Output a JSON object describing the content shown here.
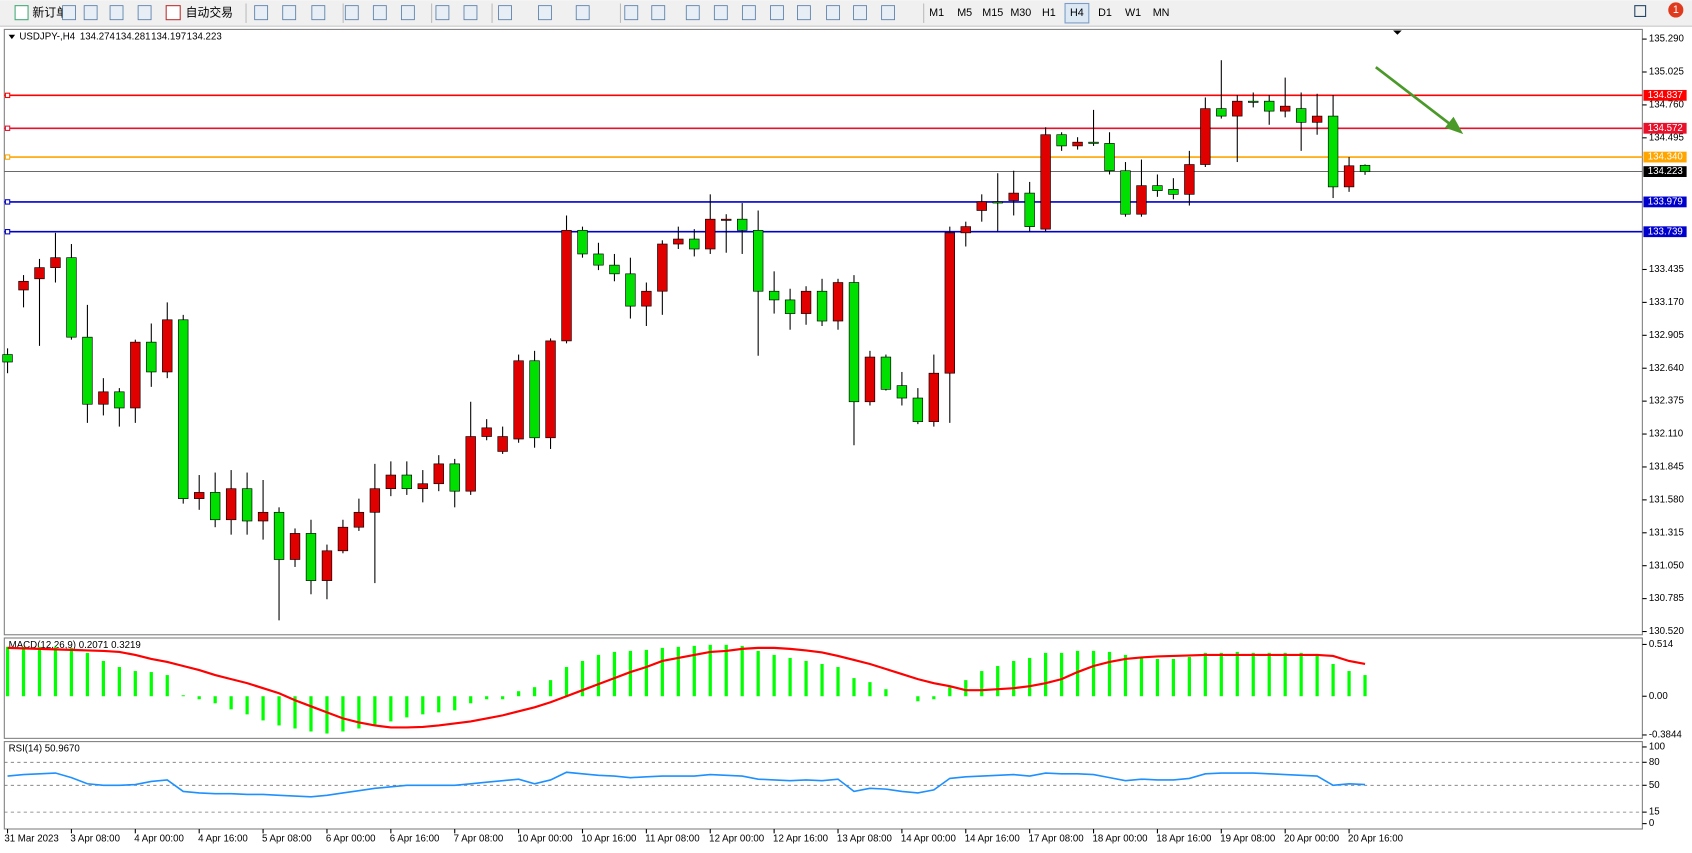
{
  "toolbar": {
    "new_order": "新订单",
    "auto_trading": "自动交易",
    "timeframes": [
      "M1",
      "M5",
      "M15",
      "M30",
      "H1",
      "H4",
      "D1",
      "W1",
      "MN"
    ],
    "active_timeframe": "H4",
    "notifications": 1
  },
  "chart_data": [
    {
      "type": "candlestick",
      "title": "USDJPY-,H4",
      "up_color": "#e00000",
      "down_color": "#00e000",
      "categories": [
        "31 Mar 2023",
        null,
        null,
        null,
        "3 Apr 08:00",
        null,
        null,
        null,
        "4 Apr 00:00",
        null,
        null,
        null,
        "4 Apr 16:00",
        null,
        null,
        null,
        "5 Apr 08:00",
        null,
        null,
        null,
        "6 Apr 00:00",
        null,
        null,
        null,
        "6 Apr 16:00",
        null,
        null,
        null,
        "7 Apr 08:00",
        null,
        null,
        null,
        "10 Apr 00:00",
        null,
        null,
        null,
        "10 Apr 16:00",
        null,
        null,
        null,
        "11 Apr 08:00",
        null,
        null,
        null,
        "12 Apr 00:00",
        null,
        null,
        null,
        "12 Apr 16:00",
        null,
        null,
        null,
        "13 Apr 08:00",
        null,
        null,
        null,
        "14 Apr 00:00",
        null,
        null,
        null,
        "14 Apr 16:00",
        null,
        null,
        null,
        "17 Apr 08:00",
        null,
        null,
        null,
        "18 Apr 00:00",
        null,
        null,
        null,
        "18 Apr 16:00",
        null,
        null,
        null,
        "19 Apr 08:00",
        null,
        null,
        null,
        "20 Apr 00:00",
        null,
        null,
        null,
        "20 Apr 16:00",
        null
      ],
      "open": [
        132.75,
        133.27,
        133.36,
        133.45,
        133.53,
        132.89,
        132.35,
        132.45,
        132.32,
        132.85,
        132.61,
        133.03,
        131.59,
        131.64,
        131.42,
        131.67,
        131.41,
        131.48,
        131.1,
        131.31,
        130.93,
        131.17,
        131.36,
        131.48,
        131.67,
        131.78,
        131.67,
        131.71,
        131.87,
        131.65,
        132.09,
        131.97,
        132.07,
        132.7,
        132.08,
        132.86,
        133.75,
        133.56,
        133.47,
        133.4,
        133.14,
        133.26,
        133.64,
        133.68,
        133.6,
        133.83,
        133.84,
        133.75,
        133.26,
        133.19,
        133.08,
        133.26,
        133.02,
        133.33,
        132.37,
        132.73,
        132.5,
        132.4,
        132.21,
        132.6,
        133.73,
        133.91,
        133.98,
        133.99,
        134.05,
        133.76,
        134.52,
        134.43,
        134.46,
        134.45,
        134.23,
        133.88,
        134.11,
        134.08,
        134.04,
        134.28,
        134.73,
        134.67,
        134.79,
        134.79,
        134.71,
        134.73,
        134.62,
        134.67,
        134.1,
        134.274
      ],
      "high": [
        132.8,
        133.39,
        133.52,
        133.73,
        133.64,
        133.15,
        132.56,
        132.48,
        132.87,
        133.0,
        133.17,
        133.07,
        131.78,
        131.8,
        131.82,
        131.8,
        131.74,
        131.52,
        131.35,
        131.42,
        131.22,
        131.42,
        131.59,
        131.87,
        131.89,
        131.89,
        131.82,
        131.94,
        131.91,
        132.37,
        132.23,
        132.17,
        132.75,
        132.78,
        132.88,
        133.87,
        133.78,
        133.65,
        133.56,
        133.53,
        133.33,
        133.67,
        133.78,
        133.76,
        134.04,
        133.88,
        133.97,
        133.91,
        133.42,
        133.28,
        133.3,
        133.36,
        133.36,
        133.39,
        132.78,
        132.75,
        132.61,
        132.48,
        132.75,
        133.78,
        133.82,
        134.04,
        134.21,
        134.23,
        134.14,
        134.58,
        134.54,
        134.5,
        134.72,
        134.54,
        134.3,
        134.32,
        134.2,
        134.17,
        134.39,
        134.82,
        135.12,
        134.84,
        134.86,
        134.84,
        134.98,
        134.86,
        134.85,
        134.84,
        134.34,
        134.281
      ],
      "low": [
        132.6,
        133.13,
        132.82,
        133.33,
        132.87,
        132.2,
        132.26,
        132.17,
        132.2,
        132.49,
        132.56,
        131.55,
        131.5,
        131.36,
        131.3,
        131.3,
        131.26,
        130.61,
        131.04,
        130.82,
        130.78,
        131.15,
        131.33,
        130.91,
        131.61,
        131.62,
        131.56,
        131.65,
        131.52,
        131.62,
        132.06,
        131.95,
        132.04,
        132.0,
        131.99,
        132.84,
        133.53,
        133.43,
        133.34,
        133.04,
        132.98,
        133.07,
        133.6,
        133.54,
        133.56,
        133.57,
        133.56,
        132.74,
        133.08,
        132.95,
        132.99,
        132.98,
        132.95,
        132.02,
        132.34,
        132.46,
        132.34,
        132.19,
        132.17,
        132.2,
        133.62,
        133.82,
        133.74,
        133.87,
        133.74,
        133.74,
        134.39,
        134.4,
        134.43,
        134.2,
        133.86,
        133.86,
        134.02,
        134.0,
        133.95,
        134.26,
        134.65,
        134.3,
        134.74,
        134.6,
        134.66,
        134.39,
        134.52,
        134.01,
        134.06,
        134.197
      ],
      "close": [
        132.69,
        133.34,
        133.45,
        133.53,
        132.89,
        132.35,
        132.45,
        132.32,
        132.85,
        132.61,
        133.03,
        131.59,
        131.64,
        131.42,
        131.67,
        131.41,
        131.48,
        131.1,
        131.31,
        130.93,
        131.17,
        131.36,
        131.48,
        131.67,
        131.78,
        131.67,
        131.71,
        131.87,
        131.65,
        132.09,
        132.16,
        132.09,
        132.7,
        132.08,
        132.86,
        133.75,
        133.56,
        133.47,
        133.4,
        133.14,
        133.26,
        133.64,
        133.68,
        133.6,
        133.84,
        133.84,
        133.75,
        133.26,
        133.19,
        133.08,
        133.26,
        133.02,
        133.33,
        132.37,
        132.73,
        132.47,
        132.4,
        132.21,
        132.6,
        133.73,
        133.78,
        133.98,
        133.97,
        134.05,
        133.78,
        134.52,
        134.43,
        134.46,
        134.45,
        134.23,
        133.88,
        134.11,
        134.07,
        134.04,
        134.28,
        134.73,
        134.67,
        134.79,
        134.78,
        134.71,
        134.75,
        134.62,
        134.67,
        134.1,
        134.27,
        134.223
      ],
      "ylim": [
        130.494,
        135.368
      ],
      "yticks": [
        {
          "value": 135.29,
          "label": "135.290"
        },
        135.025,
        {
          "value": 134.76,
          "label": "134.760"
        },
        134.495,
        133.435,
        {
          "value": 133.17,
          "label": "133.170"
        },
        132.905,
        {
          "value": 132.64,
          "label": "132.640"
        },
        132.375,
        {
          "value": 132.11,
          "label": "132.110"
        },
        131.845,
        {
          "value": 131.58,
          "label": "131.580"
        },
        131.315,
        {
          "value": 131.05,
          "label": "131.050"
        },
        130.785,
        {
          "value": 130.52,
          "label": "130.520"
        }
      ],
      "levels": [
        {
          "value": 134.837,
          "label": "134.837",
          "color": "#ff0000"
        },
        {
          "value": 134.572,
          "label": "134.572",
          "color": "#e8102a"
        },
        {
          "value": 134.34,
          "label": "134.340",
          "color": "#ffa500"
        },
        {
          "value": 133.979,
          "label": "133.979",
          "color": "#0000cd"
        },
        {
          "value": 133.739,
          "label": "133.739",
          "color": "#0000cd"
        }
      ]
    },
    {
      "type": "macd",
      "title": "MACD(12,26,9) 0.2071 0.3219",
      "histogram": {
        "color": "#00ff00",
        "values": [
          0.49,
          0.49,
          0.49,
          0.49,
          0.48,
          0.43,
          0.35,
          0.29,
          0.25,
          0.24,
          0.21,
          0.01,
          -0.03,
          -0.07,
          -0.13,
          -0.18,
          -0.24,
          -0.29,
          -0.32,
          -0.35,
          -0.37,
          -0.35,
          -0.32,
          -0.29,
          -0.25,
          -0.21,
          -0.18,
          -0.16,
          -0.14,
          -0.07,
          -0.03,
          -0.03,
          0.05,
          0.09,
          0.16,
          0.29,
          0.35,
          0.41,
          0.44,
          0.45,
          0.46,
          0.48,
          0.49,
          0.5,
          0.51,
          0.51,
          0.5,
          0.45,
          0.41,
          0.38,
          0.35,
          0.32,
          0.29,
          0.18,
          0.14,
          0.07,
          0,
          -0.05,
          -0.03,
          0.09,
          0.16,
          0.25,
          0.3,
          0.35,
          0.38,
          0.43,
          0.43,
          0.45,
          0.45,
          0.44,
          0.41,
          0.39,
          0.37,
          0.37,
          0.39,
          0.43,
          0.43,
          0.44,
          0.43,
          0.43,
          0.43,
          0.43,
          0.42,
          0.32,
          0.25,
          0.21
        ]
      },
      "signal": {
        "color": "#ff0000",
        "values": [
          0.48,
          0.475,
          0.47,
          0.465,
          0.46,
          0.455,
          0.45,
          0.44,
          0.41,
          0.37,
          0.34,
          0.3,
          0.26,
          0.21,
          0.17,
          0.13,
          0.08,
          0.03,
          -0.04,
          -0.1,
          -0.16,
          -0.22,
          -0.26,
          -0.29,
          -0.31,
          -0.31,
          -0.305,
          -0.29,
          -0.27,
          -0.25,
          -0.22,
          -0.19,
          -0.15,
          -0.11,
          -0.06,
          0,
          0.06,
          0.12,
          0.18,
          0.24,
          0.29,
          0.35,
          0.38,
          0.41,
          0.44,
          0.45,
          0.47,
          0.48,
          0.48,
          0.47,
          0.455,
          0.435,
          0.4,
          0.36,
          0.32,
          0.27,
          0.22,
          0.17,
          0.13,
          0.1,
          0.06,
          0.06,
          0.07,
          0.08,
          0.1,
          0.13,
          0.17,
          0.24,
          0.3,
          0.34,
          0.37,
          0.385,
          0.395,
          0.4,
          0.405,
          0.41,
          0.41,
          0.41,
          0.41,
          0.41,
          0.41,
          0.41,
          0.41,
          0.4,
          0.35,
          0.32
        ]
      },
      "ylim": [
        -0.418,
        0.578
      ],
      "yticks": [
        0.514,
        {
          "value": 0,
          "label": "0.00"
        },
        -0.3844
      ]
    },
    {
      "type": "rsi",
      "title": "RSI(14) 50.9670",
      "color": "#1e90ff",
      "values": [
        62,
        64,
        65,
        66,
        60,
        52,
        50,
        50,
        51,
        55,
        57,
        42,
        40,
        39,
        39,
        38,
        38,
        37,
        36,
        35,
        37,
        40,
        43,
        46,
        48,
        50,
        50,
        50,
        50,
        52,
        54,
        56,
        58,
        52,
        57,
        67,
        65,
        63,
        62,
        60,
        61,
        62,
        62,
        62,
        64,
        63,
        62,
        58,
        57,
        56,
        57,
        56,
        58,
        42,
        46,
        45,
        42,
        40,
        44,
        59,
        61,
        62,
        63,
        64,
        62,
        66,
        65,
        65,
        64,
        60,
        56,
        58,
        57,
        57,
        59,
        65,
        66,
        66,
        66,
        65,
        64,
        63,
        62,
        50,
        52,
        50.967
      ],
      "ylim": [
        -7,
        107
      ],
      "yticks": [
        100,
        80,
        50,
        15,
        0
      ],
      "levels": [
        80,
        50,
        15
      ]
    }
  ]
}
